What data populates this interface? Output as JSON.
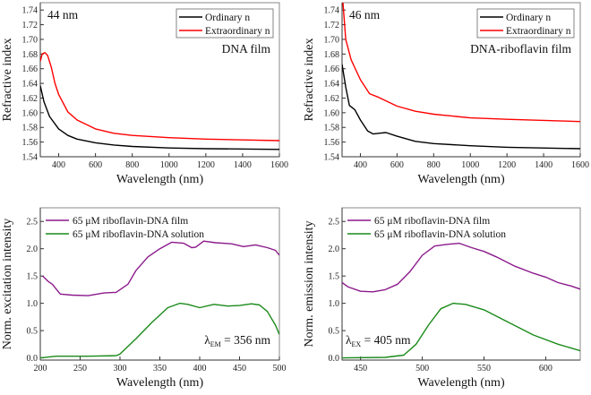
{
  "chart_data": [
    {
      "type": "line",
      "xlabel": "Wavelength (nm)",
      "ylabel": "Refractive index",
      "xlim": [
        300,
        1600
      ],
      "ylim": [
        1.54,
        1.75
      ],
      "xticks": [
        400,
        600,
        800,
        1000,
        1200,
        1400,
        1600
      ],
      "yticks": [
        1.54,
        1.56,
        1.58,
        1.6,
        1.62,
        1.64,
        1.66,
        1.68,
        1.7,
        1.72,
        1.74
      ],
      "ytick_decimals": 2,
      "legend": "top-right",
      "legend_box": true,
      "annotations": [
        {
          "text": "44 nm",
          "position": "top-left"
        },
        {
          "text": "DNA film",
          "position": "right"
        }
      ],
      "series": [
        {
          "name": "Ordinary n",
          "color": "#000000",
          "x": [
            300,
            320,
            350,
            400,
            450,
            500,
            600,
            700,
            800,
            1000,
            1200,
            1600
          ],
          "y": [
            1.637,
            1.615,
            1.595,
            1.578,
            1.569,
            1.564,
            1.559,
            1.556,
            1.554,
            1.552,
            1.551,
            1.55
          ]
        },
        {
          "name": "Extraordinary n",
          "color": "#ff0000",
          "x": [
            300,
            310,
            325,
            340,
            360,
            380,
            400,
            450,
            500,
            600,
            700,
            800,
            1000,
            1200,
            1400,
            1600
          ],
          "y": [
            1.67,
            1.68,
            1.682,
            1.678,
            1.662,
            1.64,
            1.625,
            1.601,
            1.59,
            1.578,
            1.572,
            1.569,
            1.566,
            1.564,
            1.563,
            1.562
          ]
        }
      ]
    },
    {
      "type": "line",
      "xlabel": "Wavelength (nm)",
      "ylabel": "Refractive index",
      "xlim": [
        300,
        1600
      ],
      "ylim": [
        1.54,
        1.75
      ],
      "xticks": [
        400,
        600,
        800,
        1000,
        1200,
        1400,
        1600
      ],
      "yticks": [
        1.54,
        1.56,
        1.58,
        1.6,
        1.62,
        1.64,
        1.66,
        1.68,
        1.7,
        1.72,
        1.74
      ],
      "ytick_decimals": 2,
      "legend": "top-right",
      "legend_box": true,
      "annotations": [
        {
          "text": "46 nm",
          "position": "top-left"
        },
        {
          "text": "DNA-riboflavin film",
          "position": "right"
        }
      ],
      "series": [
        {
          "name": "Ordinary n",
          "color": "#000000",
          "x": [
            300,
            320,
            340,
            370,
            400,
            440,
            470,
            500,
            540,
            600,
            700,
            800,
            1000,
            1200,
            1600
          ],
          "y": [
            1.666,
            1.635,
            1.61,
            1.604,
            1.59,
            1.575,
            1.571,
            1.572,
            1.573,
            1.568,
            1.561,
            1.558,
            1.555,
            1.553,
            1.551
          ]
        },
        {
          "name": "Extraordinary n",
          "color": "#ff0000",
          "x": [
            305,
            320,
            350,
            400,
            450,
            500,
            600,
            700,
            800,
            1000,
            1200,
            1600
          ],
          "y": [
            1.75,
            1.7,
            1.672,
            1.645,
            1.626,
            1.621,
            1.609,
            1.602,
            1.598,
            1.593,
            1.591,
            1.588
          ]
        }
      ]
    },
    {
      "type": "line",
      "xlabel": "Wavelength (nm)",
      "ylabel": "Norm. excitation intensity",
      "xlim": [
        200,
        500
      ],
      "ylim": [
        -0.04,
        2.75
      ],
      "xticks": [
        200,
        250,
        300,
        350,
        400,
        450,
        500
      ],
      "yticks": [
        0.0,
        0.5,
        1.0,
        1.5,
        2.0,
        2.5
      ],
      "ytick_decimals": 1,
      "legend": "top-left",
      "legend_box": false,
      "annotations": [
        {
          "symbol": "λ",
          "sub": "EM",
          "text": " = 356 nm",
          "position": "bottom-right"
        }
      ],
      "series": [
        {
          "name": "65 μM riboflavin-DNA film",
          "color": "#8b1a8b",
          "x": [
            203,
            210,
            215,
            225,
            240,
            260,
            280,
            295,
            310,
            320,
            335,
            350,
            365,
            380,
            390,
            395,
            405,
            420,
            440,
            455,
            470,
            485,
            495,
            500
          ],
          "y": [
            1.5,
            1.4,
            1.35,
            1.17,
            1.15,
            1.14,
            1.19,
            1.2,
            1.35,
            1.6,
            1.85,
            2.0,
            2.12,
            2.1,
            2.02,
            2.03,
            2.14,
            2.11,
            2.09,
            2.04,
            2.07,
            2.02,
            1.97,
            1.88
          ]
        },
        {
          "name": "65 μM riboflavin-DNA solution",
          "color": "#1a8a1a",
          "x": [
            200,
            220,
            260,
            295,
            300,
            320,
            340,
            360,
            375,
            385,
            400,
            418,
            435,
            450,
            465,
            475,
            485,
            495,
            500
          ],
          "y": [
            0.0,
            0.03,
            0.03,
            0.04,
            0.07,
            0.35,
            0.65,
            0.92,
            1.0,
            0.98,
            0.92,
            0.98,
            0.95,
            0.96,
            0.99,
            0.97,
            0.85,
            0.6,
            0.43
          ]
        }
      ]
    },
    {
      "type": "line",
      "xlabel": "Wavelength (nm)",
      "ylabel": "Norm. emission intensity",
      "xlim": [
        435,
        628
      ],
      "ylim": [
        -0.04,
        2.75
      ],
      "xticks": [
        450,
        500,
        550,
        600
      ],
      "yticks": [
        0.0,
        0.5,
        1.0,
        1.5,
        2.0,
        2.5
      ],
      "ytick_decimals": 1,
      "legend": "top-left",
      "legend_box": false,
      "annotations": [
        {
          "symbol": "λ",
          "sub": "EX",
          "text": " = 405 nm",
          "position": "bottom-left"
        }
      ],
      "series": [
        {
          "name": "65 μM riboflavin-DNA film",
          "color": "#8b1a8b",
          "x": [
            435,
            440,
            450,
            460,
            470,
            480,
            490,
            500,
            510,
            520,
            530,
            540,
            550,
            560,
            575,
            590,
            600,
            610,
            620,
            628
          ],
          "y": [
            1.38,
            1.3,
            1.22,
            1.21,
            1.25,
            1.35,
            1.58,
            1.88,
            2.05,
            2.08,
            2.1,
            2.02,
            1.95,
            1.85,
            1.68,
            1.55,
            1.48,
            1.38,
            1.32,
            1.26
          ]
        },
        {
          "name": "65 μM riboflavin-DNA solution",
          "color": "#1a8a1a",
          "x": [
            435,
            470,
            485,
            495,
            505,
            515,
            525,
            535,
            550,
            570,
            590,
            610,
            628
          ],
          "y": [
            0.0,
            0.01,
            0.05,
            0.25,
            0.6,
            0.9,
            1.0,
            0.98,
            0.88,
            0.65,
            0.42,
            0.25,
            0.13
          ]
        }
      ]
    }
  ]
}
